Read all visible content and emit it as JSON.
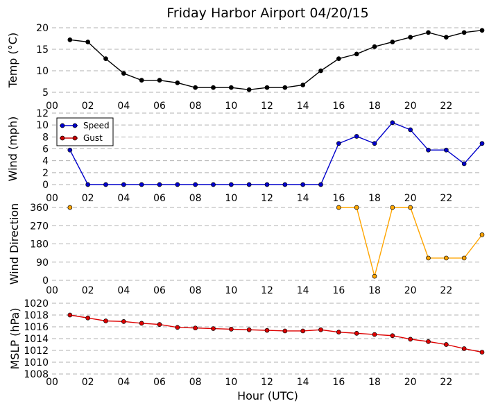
{
  "title": "Friday Harbor Airport 04/20/15",
  "xlabel": "Hour (UTC)",
  "x_tick_labels": [
    "00",
    "02",
    "04",
    "06",
    "08",
    "10",
    "12",
    "14",
    "16",
    "18",
    "20",
    "22"
  ],
  "chart_data": [
    {
      "type": "line",
      "ylabel": "Temp (°C)",
      "xlim": [
        0,
        24
      ],
      "ylim": [
        5,
        20
      ],
      "yticks": [
        5,
        10,
        15,
        20
      ],
      "grid": true,
      "series": [
        {
          "color": "#000000",
          "x": [
            1,
            2,
            3,
            4,
            5,
            6,
            7,
            8,
            9,
            10,
            11,
            12,
            13,
            14,
            15,
            16,
            17,
            18,
            19,
            20,
            21,
            22,
            23,
            24
          ],
          "y": [
            17.2,
            16.7,
            12.8,
            9.4,
            7.8,
            7.8,
            7.2,
            6.1,
            6.1,
            6.1,
            5.6,
            6.1,
            6.1,
            6.7,
            10.0,
            12.8,
            13.9,
            15.6,
            16.7,
            17.8,
            18.9,
            17.8,
            18.9,
            19.4
          ]
        }
      ]
    },
    {
      "type": "line",
      "ylabel": "Wind (mph)",
      "xlim": [
        0,
        24
      ],
      "ylim": [
        0,
        12
      ],
      "yticks": [
        0,
        2,
        4,
        6,
        8,
        10,
        12
      ],
      "grid": true,
      "legend": "top-left",
      "series": [
        {
          "name": "Speed",
          "color": "#0000cc",
          "x": [
            1,
            2,
            3,
            4,
            5,
            6,
            7,
            8,
            9,
            10,
            11,
            12,
            13,
            14,
            15,
            16,
            17,
            18,
            19,
            20,
            21,
            22,
            23,
            24
          ],
          "y": [
            5.8,
            0,
            0,
            0,
            0,
            0,
            0,
            0,
            0,
            0,
            0,
            0,
            0,
            0,
            0,
            6.9,
            8.1,
            6.9,
            10.4,
            9.2,
            5.8,
            5.8,
            3.5,
            6.9
          ]
        },
        {
          "name": "Gust",
          "color": "#cc0000",
          "x": [],
          "y": []
        }
      ]
    },
    {
      "type": "line",
      "ylabel": "Wind Direction",
      "xlim": [
        0,
        24
      ],
      "ylim": [
        0,
        360
      ],
      "yticks": [
        0,
        90,
        180,
        270,
        360
      ],
      "grid": true,
      "series": [
        {
          "color": "#ffa500",
          "x": [
            1,
            16,
            17,
            18,
            19,
            20,
            21,
            22,
            23,
            24
          ],
          "y": [
            360,
            360,
            360,
            20,
            360,
            360,
            110,
            110,
            110,
            225
          ],
          "segments": [
            [
              0,
              0
            ],
            [
              1,
              9
            ]
          ]
        }
      ]
    },
    {
      "type": "line",
      "ylabel": "MSLP (hPa)",
      "xlim": [
        0,
        24
      ],
      "ylim": [
        1008,
        1020
      ],
      "yticks": [
        1008,
        1010,
        1012,
        1014,
        1016,
        1018,
        1020
      ],
      "grid": true,
      "series": [
        {
          "color": "#dd0000",
          "x": [
            1,
            2,
            3,
            4,
            5,
            6,
            7,
            8,
            9,
            10,
            11,
            12,
            13,
            14,
            15,
            16,
            17,
            18,
            19,
            20,
            21,
            22,
            23,
            24
          ],
          "y": [
            1018.0,
            1017.5,
            1017.0,
            1016.9,
            1016.6,
            1016.4,
            1015.9,
            1015.8,
            1015.7,
            1015.6,
            1015.5,
            1015.4,
            1015.3,
            1015.3,
            1015.5,
            1015.1,
            1014.9,
            1014.7,
            1014.5,
            1013.9,
            1013.5,
            1013.0,
            1012.3,
            1011.7
          ]
        }
      ]
    }
  ]
}
